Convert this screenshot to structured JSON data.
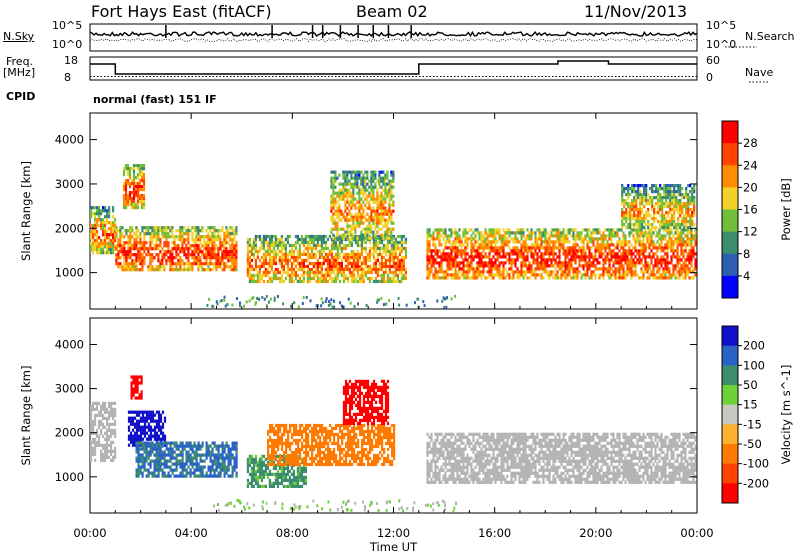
{
  "header": {
    "station": "Fort Hays East (fitACF)",
    "beam": "Beam 02",
    "date": "11/Nov/2013"
  },
  "status_panel": {
    "nsky_label": "N.Sky",
    "nsearch_label": "N.Search",
    "noise_ticks": [
      "10^5",
      "10^0"
    ],
    "freq_label": "Freq.",
    "freq_unit": "[MHz]",
    "freq_ticks": [
      "18",
      "8"
    ],
    "nave_label": "Nave",
    "nave_ticks": [
      "60",
      "0"
    ],
    "cpid_label": "CPID",
    "cpid_value": "normal (fast) 151 IF"
  },
  "colors": {
    "power": [
      "#0000ff",
      "#2d5fb0",
      "#3c8c6e",
      "#6fbf3a",
      "#f2d22a",
      "#ff8c00",
      "#ff4500",
      "#ff0000"
    ],
    "velocity": [
      "#1010c8",
      "#2a62c8",
      "#3c8c6e",
      "#6fd03a",
      "#c8c8c0",
      "#ffb030",
      "#ff7a00",
      "#ff4500",
      "#ff0000"
    ],
    "ground_scatter": "#b4b4b4"
  },
  "chart_data": [
    {
      "type": "heatmap",
      "title": "",
      "xlabel": "Time UT",
      "ylabel": "Slant Range [km]",
      "x_ticks": [
        "00:00",
        "04:00",
        "08:00",
        "12:00",
        "16:00",
        "20:00",
        "00:00"
      ],
      "y_ticks": [
        "1000",
        "2000",
        "3000",
        "4000"
      ],
      "xlim": [
        0,
        24
      ],
      "ylim": [
        180,
        4600
      ],
      "colorbar": {
        "label": "Power [dB]",
        "ticks": [
          "4",
          "8",
          "12",
          "16",
          "20",
          "24",
          "28"
        ],
        "range": [
          0,
          32
        ]
      },
      "regions": [
        {
          "t": [
            0.0,
            1.0
          ],
          "r": [
            1450,
            2500
          ],
          "level": 0.45
        },
        {
          "t": [
            1.0,
            5.8
          ],
          "r": [
            1050,
            2050
          ],
          "level": 0.65
        },
        {
          "t": [
            1.3,
            2.1
          ],
          "r": [
            2500,
            3450
          ],
          "level": 0.6
        },
        {
          "t": [
            6.2,
            12.5
          ],
          "r": [
            800,
            1850
          ],
          "level": 0.5
        },
        {
          "t": [
            9.5,
            12.0
          ],
          "r": [
            1800,
            3300
          ],
          "level": 0.4
        },
        {
          "t": [
            13.3,
            23.9
          ],
          "r": [
            900,
            2000
          ],
          "level": 0.7
        },
        {
          "t": [
            21.0,
            23.9
          ],
          "r": [
            2000,
            3000
          ],
          "level": 0.35
        }
      ]
    },
    {
      "type": "heatmap",
      "title": "",
      "xlabel": "Time UT",
      "ylabel": "Slant Range [km]",
      "x_ticks": [
        "00:00",
        "04:00",
        "08:00",
        "12:00",
        "16:00",
        "20:00",
        "00:00"
      ],
      "y_ticks": [
        "1000",
        "2000",
        "3000",
        "4000"
      ],
      "xlim": [
        0,
        24
      ],
      "ylim": [
        180,
        4600
      ],
      "colorbar": {
        "label": "Velocity [m s^-1]",
        "ticks": [
          "200",
          "100",
          "50",
          "15",
          "-15",
          "-50",
          "-100",
          "-200"
        ],
        "range": [
          -250,
          250
        ]
      },
      "regions": [
        {
          "t": [
            0.0,
            1.0
          ],
          "r": [
            1400,
            2700
          ],
          "v": "ground"
        },
        {
          "t": [
            1.5,
            3.0
          ],
          "r": [
            1700,
            2500
          ],
          "v": 200
        },
        {
          "t": [
            1.6,
            2.0
          ],
          "r": [
            2800,
            3300
          ],
          "v": -200
        },
        {
          "t": [
            1.8,
            5.8
          ],
          "r": [
            1050,
            1800
          ],
          "v": 80
        },
        {
          "t": [
            6.2,
            8.5
          ],
          "r": [
            800,
            1500
          ],
          "v": 40
        },
        {
          "t": [
            7.0,
            12.0
          ],
          "r": [
            1300,
            2200
          ],
          "v": -70
        },
        {
          "t": [
            10.0,
            11.8
          ],
          "r": [
            2200,
            3200
          ],
          "v": -200
        },
        {
          "t": [
            13.3,
            23.9
          ],
          "r": [
            900,
            2000
          ],
          "v": "ground"
        }
      ]
    }
  ]
}
